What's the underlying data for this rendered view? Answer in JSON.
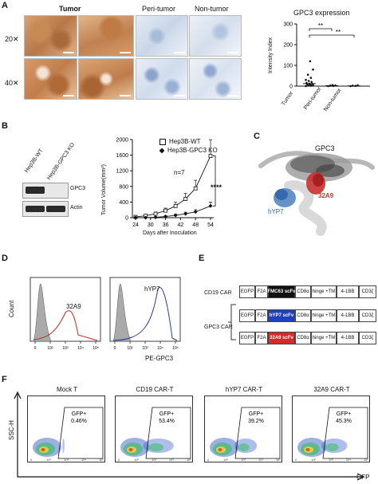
{
  "panelA": {
    "letter": "A",
    "col_headers": [
      "Tumor",
      "Peri-tumor",
      "Non-tumor"
    ],
    "row_labels": [
      "20✕",
      "40✕"
    ],
    "chart_data": {
      "type": "scatter",
      "title": "GPC3 expression",
      "ylabel": "Intensity Index",
      "categories": [
        "Tumor",
        "Peri-tumor",
        "Non-tumor"
      ],
      "yticks": [
        "0",
        "100",
        "200",
        "300"
      ],
      "ylim": [
        0,
        300
      ],
      "mean": [
        12,
        2,
        1
      ],
      "points": [
        [
          0,
          2,
          3,
          5,
          6,
          8,
          10,
          12,
          15,
          20,
          25,
          30,
          40,
          55,
          80,
          120
        ],
        [
          0,
          1,
          2,
          3,
          5
        ],
        [
          0,
          1,
          2,
          4
        ]
      ],
      "significance": [
        "**",
        "**"
      ]
    }
  },
  "panelB": {
    "letter": "B",
    "blot_lanes": [
      "Hep3B-WT",
      "Hep3B-GPC3 KO"
    ],
    "blot_bands": [
      "GPC3",
      "Actin"
    ],
    "gpc3_band": [
      1,
      0
    ],
    "actin_band": [
      1,
      1
    ],
    "chart_data": {
      "type": "line",
      "xlabel": "Days after Inoculation",
      "ylabel": "Tumor Volume(mm³)",
      "x": [
        24,
        28,
        32,
        36,
        40,
        44,
        48,
        54
      ],
      "xticks": [
        "24",
        "30",
        "36",
        "42",
        "48",
        "54"
      ],
      "yticks": [
        "0",
        "400",
        "800",
        "1200",
        "1600",
        "2000"
      ],
      "ylim": [
        0,
        2000
      ],
      "series": [
        {
          "name": "Hep3B-WT",
          "values": [
            20,
            50,
            100,
            180,
            300,
            480,
            750,
            1580
          ]
        },
        {
          "name": "Hep3B-GPC3 KO",
          "values": [
            0,
            0,
            10,
            30,
            60,
            100,
            150,
            300
          ]
        }
      ],
      "annotation": "n=7",
      "significance": "****"
    }
  },
  "panelC": {
    "letter": "C",
    "labels": [
      "GPC3",
      "hYP7",
      "32A9"
    ]
  },
  "panelD": {
    "letter": "D",
    "ylabel": "Count",
    "xlabel": "PE-GPC3",
    "histograms": [
      {
        "label": "32A9",
        "color": "#c8282a"
      },
      {
        "label": "hYP7",
        "color": "#2a3a9a"
      }
    ],
    "ticks": [
      "0",
      "10²",
      "10³",
      "10⁴",
      "10⁵"
    ]
  },
  "panelE": {
    "letter": "E",
    "constructs": [
      {
        "name": "CD19 CAR",
        "parts": [
          "EGFP",
          "F2A",
          "FMC63 scFv",
          "CD8α",
          "hinge +TM",
          "4-1BB",
          "CD3ζ"
        ]
      },
      {
        "name": "GPC3 CAR",
        "parts": [
          "EGFP",
          "F2A",
          "hYP7 scFv",
          "CD8α",
          "hinge +TM",
          "4-1BB",
          "CD3ζ"
        ]
      },
      {
        "name": "",
        "parts": [
          "EGFP",
          "F2A",
          "32A9 scFv",
          "CD8α",
          "hinge +TM",
          "4-1BB",
          "CD3ζ"
        ]
      }
    ],
    "scfv_colors": [
      "#111111",
      "#1f3fbf",
      "#d42a2a"
    ]
  },
  "panelF": {
    "letter": "F",
    "ylabel": "SSC-H",
    "xlabel": "GFP",
    "plots": [
      {
        "title": "Mock T",
        "gate": "GFP+",
        "pct": "0.46%",
        "fraction": 0.0046
      },
      {
        "title": "CD19 CAR-T",
        "gate": "GFP+",
        "pct": "53.4%",
        "fraction": 0.534
      },
      {
        "title": "hYP7 CAR-T",
        "gate": "GFP+",
        "pct": "39.2%",
        "fraction": 0.392
      },
      {
        "title": "32A9 CAR-T",
        "gate": "GFP+",
        "pct": "45.3%",
        "fraction": 0.453
      }
    ]
  }
}
